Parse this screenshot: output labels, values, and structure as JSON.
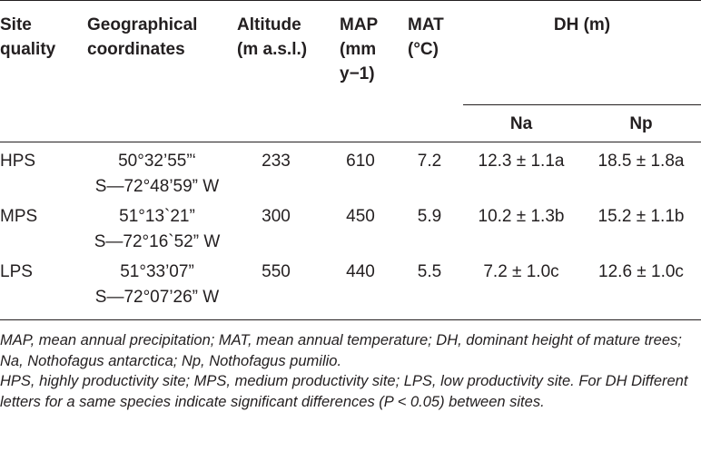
{
  "header": {
    "site_quality": [
      "Site",
      "quality"
    ],
    "coordinates": [
      "Geographical",
      "coordinates"
    ],
    "altitude": [
      "Altitude",
      "(m a.s.l.)"
    ],
    "map": [
      "MAP",
      "(mm",
      "y−1)"
    ],
    "mat": [
      "MAT",
      "(°C)"
    ],
    "dh": "DH (m)",
    "na": "Na",
    "np": "Np"
  },
  "rows": [
    {
      "site": "HPS",
      "coord_line1": "50°32’55”‘",
      "coord_line2": "S—72°48’59” W",
      "altitude": "233",
      "map": "610",
      "mat": "7.2",
      "na": "12.3 ± 1.1a",
      "np": "18.5 ± 1.8a"
    },
    {
      "site": "MPS",
      "coord_line1": "51°13`21”",
      "coord_line2": "S—72°16`52” W",
      "altitude": "300",
      "map": "450",
      "mat": "5.9",
      "na": "10.2 ± 1.3b",
      "np": "15.2 ± 1.1b"
    },
    {
      "site": "LPS",
      "coord_line1": "51°33’07”",
      "coord_line2": "S—72°07’26” W",
      "altitude": "550",
      "map": "440",
      "mat": "5.5",
      "na": "7.2 ± 1.0c",
      "np": "12.6 ± 1.0c"
    }
  ],
  "notes": [
    "MAP, mean annual precipitation; MAT, mean annual temperature; DH, dominant height of mature trees; Na, Nothofagus antarctica; Np, Nothofagus pumilio.",
    "HPS, highly productivity site; MPS, medium productivity site; LPS, low productivity site. For DH Different letters for a same species indicate significant differences (P < 0.05) between sites."
  ]
}
